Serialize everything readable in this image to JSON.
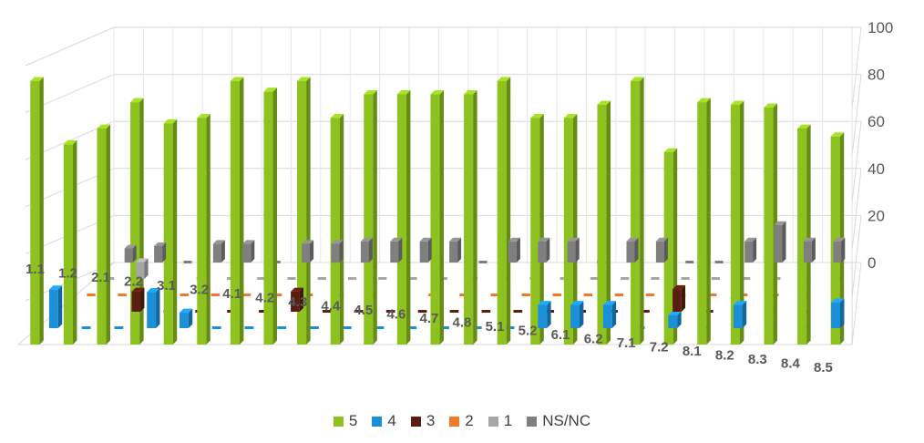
{
  "chart_data": {
    "type": "bar",
    "subtype": "3d-clustered-column",
    "title": "",
    "xlabel": "",
    "ylabel": "",
    "ylim": [
      0,
      100
    ],
    "yticks": [
      0,
      20,
      40,
      60,
      80,
      100
    ],
    "grid": true,
    "legend_position": "bottom",
    "categories": [
      "1.1",
      "1.2",
      "2.1",
      "2.2",
      "3.1",
      "3.2",
      "4.1",
      "4.2",
      "4.3",
      "4.4",
      "4.5",
      "4.6",
      "4.7",
      "4.8",
      "5.1",
      "5.2",
      "6.1",
      "6.2",
      "7.1",
      "7.2",
      "8.1",
      "8.2",
      "8.3",
      "8.4",
      "8.5"
    ],
    "series": [
      {
        "name": "5",
        "color": "#8DC21F",
        "values": [
          100,
          76,
          82,
          92,
          84,
          86,
          100,
          96,
          100,
          86,
          95,
          95,
          95,
          95,
          100,
          86,
          86,
          91,
          100,
          73,
          92,
          91,
          90,
          82,
          79
        ]
      },
      {
        "name": "4",
        "color": "#1B8FD8",
        "values": [
          15,
          0,
          0,
          14,
          6,
          0,
          0,
          0,
          0,
          0,
          0,
          0,
          0,
          0,
          0,
          9,
          9,
          9,
          0,
          5,
          0,
          9,
          0,
          0,
          10
        ]
      },
      {
        "name": "3",
        "color": "#5A1E10",
        "values": [
          0,
          0,
          8,
          0,
          0,
          0,
          0,
          8,
          0,
          0,
          0,
          0,
          0,
          0,
          0,
          0,
          0,
          0,
          0,
          9,
          0,
          0,
          0,
          0,
          0
        ]
      },
      {
        "name": "2",
        "color": "#F07A2B",
        "values": [
          0,
          0,
          0,
          0,
          0,
          0,
          0,
          0,
          0,
          0,
          0,
          0,
          0,
          0,
          0,
          0,
          0,
          0,
          0,
          0,
          0,
          0,
          0,
          0,
          0
        ]
      },
      {
        "name": "1",
        "color": "#A6A6A6",
        "values": [
          0,
          7,
          0,
          0,
          0,
          0,
          0,
          0,
          0,
          0,
          0,
          0,
          0,
          0,
          0,
          0,
          0,
          0,
          0,
          0,
          0,
          0,
          0,
          0,
          0
        ]
      },
      {
        "name": "NS/NC",
        "color": "#7F7F7F",
        "values": [
          6,
          7,
          0,
          8,
          8,
          0,
          8,
          8,
          9,
          9,
          9,
          9,
          0,
          9,
          9,
          9,
          0,
          9,
          9,
          0,
          0,
          9,
          16,
          9,
          9
        ]
      }
    ]
  }
}
